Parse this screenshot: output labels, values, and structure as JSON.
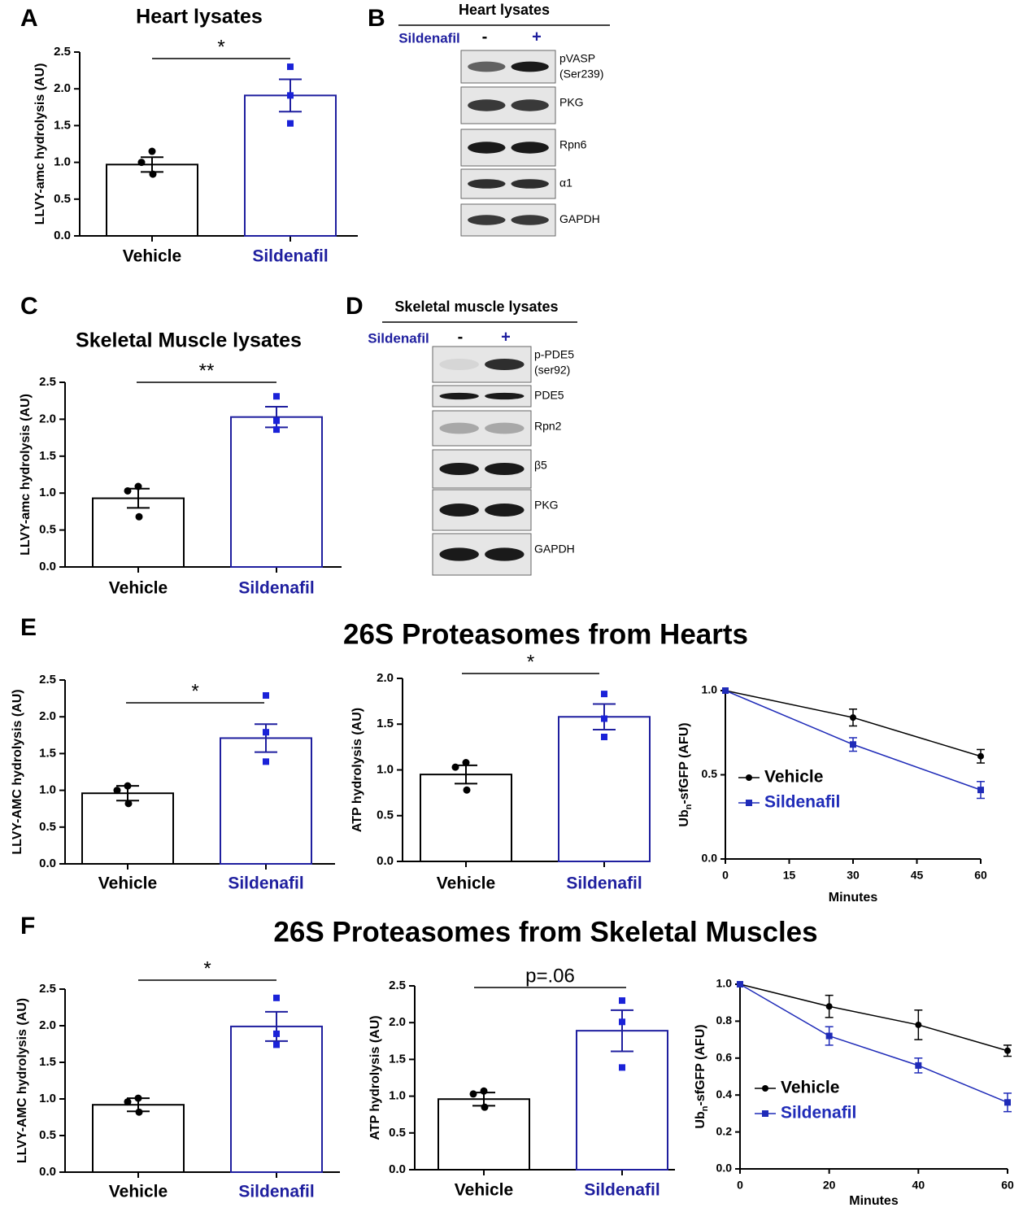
{
  "panel_letters": [
    "A",
    "B",
    "C",
    "D",
    "E",
    "F"
  ],
  "section_titles": [
    "26S Proteasomes from Hearts",
    "26S Proteasomes from Skeletal Muscles"
  ],
  "blots": [
    {
      "title": "Heart lysates",
      "treatment": "Sildenafil",
      "conditions": [
        "-",
        "+"
      ],
      "bands": [
        [
          "pVASP",
          "(Ser239)"
        ],
        [
          "PKG"
        ],
        [
          "Rpn6"
        ],
        [
          "α1"
        ],
        [
          "GAPDH"
        ]
      ]
    },
    {
      "title": "Skeletal muscle lysates",
      "treatment": "Sildenafil",
      "conditions": [
        "-",
        "+"
      ],
      "bands": [
        [
          "p-PDE5",
          "(ser92)"
        ],
        [
          "PDE5"
        ],
        [
          "Rpn2"
        ],
        [
          "β5"
        ],
        [
          "PKG"
        ],
        [
          "GAPDH"
        ]
      ]
    }
  ],
  "chart_data": [
    {
      "type": "bar",
      "title": "Heart lysates",
      "ylabel": "LLVY-amc hydrolysis (AU)",
      "categories": [
        "Vehicle",
        "Sildenafil"
      ],
      "values": [
        0.97,
        1.91
      ],
      "errors": [
        0.1,
        0.22
      ],
      "points": [
        [
          1.15,
          1.0,
          0.84
        ],
        [
          2.3,
          1.91,
          1.53
        ]
      ],
      "colors": [
        "#000000",
        "#1f1f9f"
      ],
      "marker_colors": [
        "#000000",
        "#1a22d8"
      ],
      "markers": [
        "circle",
        "square"
      ],
      "ylim": [
        0,
        2.5
      ],
      "yticks": [
        {
          "value": 0,
          "label": "0.0"
        },
        {
          "value": 0.5,
          "label": "0.5"
        },
        {
          "value": 1,
          "label": "1.0"
        },
        {
          "value": 1.5,
          "label": "1.5"
        },
        {
          "value": 2,
          "label": "2.0"
        },
        {
          "value": 2.5,
          "label": "2.5"
        }
      ],
      "annotation": "*"
    },
    {
      "type": "bar",
      "title": "Skeletal Muscle lysates",
      "ylabel": "LLVY-amc hydrolysis (AU)",
      "categories": [
        "Vehicle",
        "Sildenafil"
      ],
      "values": [
        0.93,
        2.03
      ],
      "errors": [
        0.13,
        0.14
      ],
      "points": [
        [
          1.09,
          1.03,
          0.68
        ],
        [
          2.31,
          1.98,
          1.86
        ]
      ],
      "colors": [
        "#000000",
        "#1f1f9f"
      ],
      "marker_colors": [
        "#000000",
        "#1a22d8"
      ],
      "markers": [
        "circle",
        "square"
      ],
      "ylim": [
        0,
        2.5
      ],
      "yticks": [
        {
          "value": 0,
          "label": "0.0"
        },
        {
          "value": 0.5,
          "label": "0.5"
        },
        {
          "value": 1,
          "label": "1.0"
        },
        {
          "value": 1.5,
          "label": "1.5"
        },
        {
          "value": 2,
          "label": "2.0"
        },
        {
          "value": 2.5,
          "label": "2.5"
        }
      ],
      "annotation": "**"
    },
    {
      "type": "bar",
      "ylabel": "LLVY-AMC hydrolysis  (AU)",
      "categories": [
        "Vehicle",
        "Sildenafil"
      ],
      "values": [
        0.96,
        1.71
      ],
      "errors": [
        0.1,
        0.19
      ],
      "points": [
        [
          1.06,
          1.0,
          0.82
        ],
        [
          2.29,
          1.79,
          1.39
        ]
      ],
      "colors": [
        "#000000",
        "#1f1f9f"
      ],
      "marker_colors": [
        "#000000",
        "#1a22d8"
      ],
      "markers": [
        "circle",
        "square"
      ],
      "ylim": [
        0,
        2.5
      ],
      "yticks": [
        {
          "value": 0,
          "label": "0.0"
        },
        {
          "value": 0.5,
          "label": "0.5"
        },
        {
          "value": 1,
          "label": "1.0"
        },
        {
          "value": 1.5,
          "label": "1.5"
        },
        {
          "value": 2,
          "label": "2.0"
        },
        {
          "value": 2.5,
          "label": "2.5"
        }
      ],
      "annotation": "*"
    },
    {
      "type": "bar",
      "ylabel": "ATP hydrolysis  (AU)",
      "categories": [
        "Vehicle",
        "Sildenafil"
      ],
      "values": [
        0.95,
        1.58
      ],
      "errors": [
        0.1,
        0.14
      ],
      "points": [
        [
          1.08,
          1.03,
          0.78
        ],
        [
          1.83,
          1.56,
          1.36
        ]
      ],
      "colors": [
        "#000000",
        "#1f1f9f"
      ],
      "marker_colors": [
        "#000000",
        "#1a22d8"
      ],
      "markers": [
        "circle",
        "square"
      ],
      "ylim": [
        0,
        2
      ],
      "yticks": [
        {
          "value": 0,
          "label": "0.0"
        },
        {
          "value": 0.5,
          "label": "0.5"
        },
        {
          "value": 1,
          "label": "1.0"
        },
        {
          "value": 1.5,
          "label": "1.5"
        },
        {
          "value": 2,
          "label": "2.0"
        }
      ],
      "annotation": "*"
    },
    {
      "type": "line",
      "xlabel": "Minutes",
      "ylabel_parts": [
        "Ub",
        "n",
        "-sfGFP (AFU)"
      ],
      "x": [
        0,
        30,
        60
      ],
      "series": [
        {
          "name": "Vehicle",
          "color": "#000000",
          "marker": "circle",
          "values": [
            1.0,
            0.84,
            0.61
          ],
          "errors": [
            0,
            0.05,
            0.04
          ]
        },
        {
          "name": "Sildenafil",
          "color": "#1f2bb8",
          "marker": "square",
          "values": [
            1.0,
            0.68,
            0.41
          ],
          "errors": [
            0,
            0.04,
            0.05
          ]
        }
      ],
      "xlim": [
        0,
        60
      ],
      "xticks": [
        0,
        15,
        30,
        45,
        60
      ],
      "ylim": [
        0,
        1
      ],
      "yticks": [
        {
          "value": 0,
          "label": "0.0"
        },
        {
          "value": 0.5,
          "label": "0.5"
        },
        {
          "value": 1,
          "label": "1.0"
        }
      ],
      "legend": "left"
    },
    {
      "type": "bar",
      "ylabel": "LLVY-AMC hydrolysis  (AU)",
      "categories": [
        "Vehicle",
        "Sildenafil"
      ],
      "values": [
        0.92,
        1.99
      ],
      "errors": [
        0.09,
        0.2
      ],
      "points": [
        [
          1.01,
          0.96,
          0.82
        ],
        [
          2.38,
          1.89,
          1.74
        ]
      ],
      "colors": [
        "#000000",
        "#1f1f9f"
      ],
      "marker_colors": [
        "#000000",
        "#1a22d8"
      ],
      "markers": [
        "circle",
        "square"
      ],
      "ylim": [
        0,
        2.5
      ],
      "yticks": [
        {
          "value": 0,
          "label": "0.0"
        },
        {
          "value": 0.5,
          "label": "0.5"
        },
        {
          "value": 1,
          "label": "1.0"
        },
        {
          "value": 1.5,
          "label": "1.5"
        },
        {
          "value": 2,
          "label": "2.0"
        },
        {
          "value": 2.5,
          "label": "2.5"
        }
      ],
      "annotation": "*"
    },
    {
      "type": "bar",
      "ylabel": "ATP hydrolysis  (AU)",
      "categories": [
        "Vehicle",
        "Sildenafil"
      ],
      "values": [
        0.96,
        1.89
      ],
      "errors": [
        0.09,
        0.28
      ],
      "points": [
        [
          1.07,
          1.03,
          0.85
        ],
        [
          2.3,
          2.01,
          1.39
        ]
      ],
      "colors": [
        "#000000",
        "#1f1f9f"
      ],
      "marker_colors": [
        "#000000",
        "#1a22d8"
      ],
      "markers": [
        "circle",
        "square"
      ],
      "ylim": [
        0,
        2.5
      ],
      "yticks": [
        {
          "value": 0,
          "label": "0.0"
        },
        {
          "value": 0.5,
          "label": "0.5"
        },
        {
          "value": 1,
          "label": "1.0"
        },
        {
          "value": 1.5,
          "label": "1.5"
        },
        {
          "value": 2,
          "label": "2.0"
        },
        {
          "value": 2.5,
          "label": "2.5"
        }
      ],
      "annotation": "p=.06"
    },
    {
      "type": "line",
      "xlabel": "Minutes",
      "ylabel_parts": [
        "Ub",
        "n",
        "-sfGFP (AFU)"
      ],
      "x": [
        0,
        20,
        40,
        60
      ],
      "series": [
        {
          "name": "Vehicle",
          "color": "#000000",
          "marker": "circle",
          "values": [
            1.0,
            0.88,
            0.78,
            0.64
          ],
          "errors": [
            0,
            0.06,
            0.08,
            0.03
          ]
        },
        {
          "name": "Sildenafil",
          "color": "#1f2bb8",
          "marker": "square",
          "values": [
            1.0,
            0.72,
            0.56,
            0.36
          ],
          "errors": [
            0,
            0.05,
            0.04,
            0.05
          ]
        }
      ],
      "xlim": [
        0,
        60
      ],
      "xticks": [
        0,
        20,
        40,
        60
      ],
      "ylim": [
        0,
        1
      ],
      "yticks": [
        {
          "value": 0,
          "label": "0.0"
        },
        {
          "value": 0.2,
          "label": "0.2"
        },
        {
          "value": 0.4,
          "label": "0.4"
        },
        {
          "value": 0.6,
          "label": "0.6"
        },
        {
          "value": 0.8,
          "label": "0.8"
        },
        {
          "value": 1,
          "label": "1.0"
        }
      ],
      "legend": "left"
    }
  ]
}
